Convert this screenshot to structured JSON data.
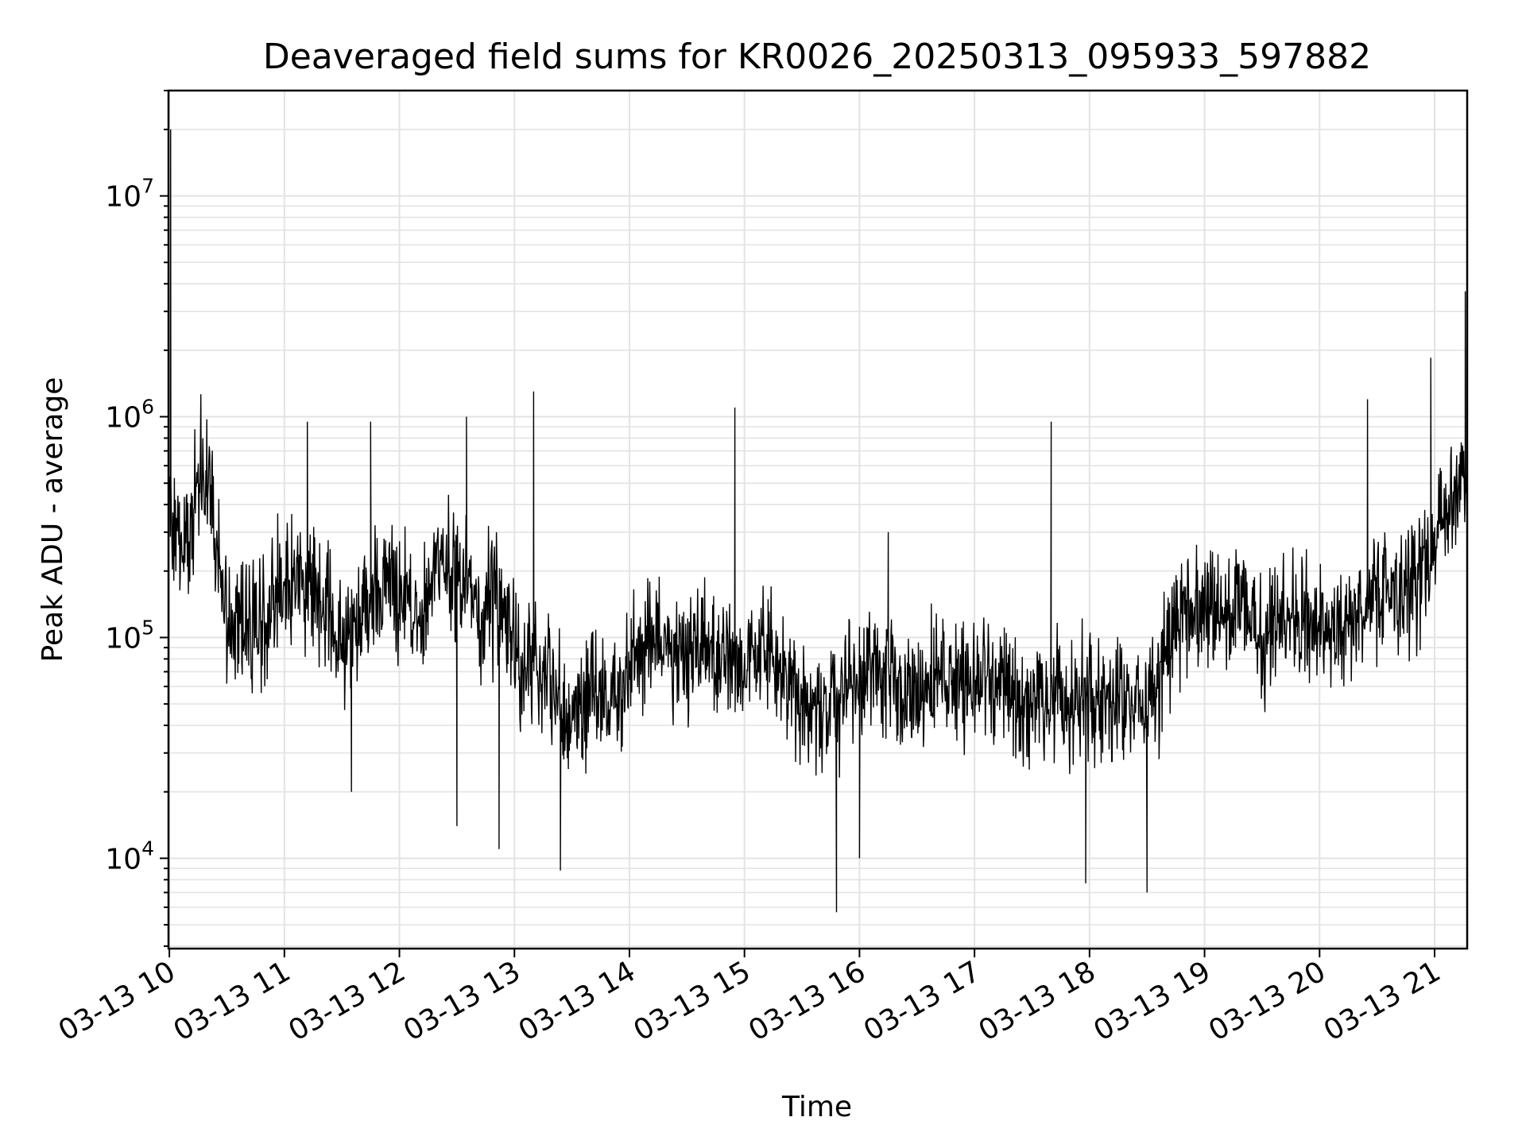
{
  "chart_data": {
    "type": "line",
    "title": "Deaveraged field sums for KR0026_20250313_095933_597882",
    "xlabel": "Time",
    "ylabel": "Peak ADU - average",
    "yscale": "log",
    "ylim": [
      3900,
      30000000
    ],
    "xlim": [
      "2025-03-13T09:59:33",
      "2025-03-13T21:17:00"
    ],
    "grid": true,
    "colors": {
      "line": "#000000",
      "grid": "#e3e3e3",
      "axis": "#000000"
    },
    "x_ticks": [
      "03-13 10",
      "03-13 11",
      "03-13 12",
      "03-13 13",
      "03-13 14",
      "03-13 15",
      "03-13 16",
      "03-13 17",
      "03-13 18",
      "03-13 19",
      "03-13 20",
      "03-13 21"
    ],
    "y_ticks": [
      {
        "base": "10",
        "exp": "4",
        "value": 10000
      },
      {
        "base": "10",
        "exp": "5",
        "value": 100000
      },
      {
        "base": "10",
        "exp": "6",
        "value": 1000000
      },
      {
        "base": "10",
        "exp": "7",
        "value": 10000000
      }
    ],
    "series": [
      {
        "x": [
          "2025-03-13T10:00",
          "2025-03-13T10:05",
          "2025-03-13T10:10",
          "2025-03-13T10:15",
          "2025-03-13T10:20",
          "2025-03-13T10:30",
          "2025-03-13T10:40",
          "2025-03-13T10:50",
          "2025-03-13T11:00",
          "2025-03-13T11:10",
          "2025-03-13T11:20",
          "2025-03-13T11:30",
          "2025-03-13T11:40",
          "2025-03-13T11:50",
          "2025-03-13T12:00",
          "2025-03-13T12:10",
          "2025-03-13T12:20",
          "2025-03-13T12:30",
          "2025-03-13T12:40",
          "2025-03-13T12:50",
          "2025-03-13T13:00",
          "2025-03-13T13:10",
          "2025-03-13T13:20",
          "2025-03-13T13:30",
          "2025-03-13T13:40",
          "2025-03-13T13:50",
          "2025-03-13T14:00",
          "2025-03-13T14:10",
          "2025-03-13T14:20",
          "2025-03-13T14:30",
          "2025-03-13T14:40",
          "2025-03-13T14:50",
          "2025-03-13T15:00",
          "2025-03-13T15:10",
          "2025-03-13T15:20",
          "2025-03-13T15:30",
          "2025-03-13T15:40",
          "2025-03-13T15:50",
          "2025-03-13T16:00",
          "2025-03-13T16:10",
          "2025-03-13T16:20",
          "2025-03-13T16:30",
          "2025-03-13T16:40",
          "2025-03-13T16:50",
          "2025-03-13T17:00",
          "2025-03-13T17:10",
          "2025-03-13T17:20",
          "2025-03-13T17:30",
          "2025-03-13T17:40",
          "2025-03-13T17:50",
          "2025-03-13T18:00",
          "2025-03-13T18:10",
          "2025-03-13T18:20",
          "2025-03-13T18:30",
          "2025-03-13T18:40",
          "2025-03-13T18:50",
          "2025-03-13T19:00",
          "2025-03-13T19:10",
          "2025-03-13T19:20",
          "2025-03-13T19:30",
          "2025-03-13T19:40",
          "2025-03-13T19:50",
          "2025-03-13T20:00",
          "2025-03-13T20:10",
          "2025-03-13T20:20",
          "2025-03-13T20:30",
          "2025-03-13T20:40",
          "2025-03-13T20:50",
          "2025-03-13T21:00",
          "2025-03-13T21:05",
          "2025-03-13T21:10",
          "2025-03-13T21:15"
        ],
        "y": [
          400000,
          300000,
          250000,
          450000,
          550000,
          120000,
          110000,
          120000,
          180000,
          170000,
          150000,
          100000,
          130000,
          170000,
          170000,
          110000,
          250000,
          200000,
          130000,
          160000,
          90000,
          70000,
          60000,
          40000,
          55000,
          55000,
          80000,
          100000,
          90000,
          80000,
          90000,
          85000,
          75000,
          90000,
          70000,
          50000,
          45000,
          55000,
          70000,
          70000,
          60000,
          55000,
          60000,
          65000,
          65000,
          60000,
          55000,
          50000,
          55000,
          50000,
          55000,
          50000,
          55000,
          45000,
          80000,
          120000,
          130000,
          120000,
          140000,
          90000,
          130000,
          110000,
          110000,
          110000,
          120000,
          160000,
          160000,
          180000,
          280000,
          380000,
          450000,
          500000
        ]
      }
    ],
    "spikes": [
      {
        "x": "2025-03-13T10:00:40",
        "y": 20000000
      },
      {
        "x": "2025-03-13T11:12",
        "y": 950000
      },
      {
        "x": "2025-03-13T11:45",
        "y": 950000
      },
      {
        "x": "2025-03-13T12:35",
        "y": 1000000
      },
      {
        "x": "2025-03-13T13:10",
        "y": 1300000
      },
      {
        "x": "2025-03-13T14:55",
        "y": 1100000
      },
      {
        "x": "2025-03-13T16:15",
        "y": 300000
      },
      {
        "x": "2025-03-13T17:40",
        "y": 950000
      },
      {
        "x": "2025-03-13T20:25",
        "y": 1200000
      },
      {
        "x": "2025-03-13T20:58",
        "y": 1850000
      },
      {
        "x": "2025-03-13T21:16",
        "y": 3700000
      }
    ],
    "dips": [
      {
        "x": "2025-03-13T11:35",
        "y": 20000
      },
      {
        "x": "2025-03-13T12:30",
        "y": 14000
      },
      {
        "x": "2025-03-13T12:52",
        "y": 11000
      },
      {
        "x": "2025-03-13T13:24",
        "y": 8800
      },
      {
        "x": "2025-03-13T15:48",
        "y": 5700
      },
      {
        "x": "2025-03-13T16:00",
        "y": 10000
      },
      {
        "x": "2025-03-13T17:58",
        "y": 7700
      },
      {
        "x": "2025-03-13T18:30",
        "y": 7000
      }
    ]
  }
}
